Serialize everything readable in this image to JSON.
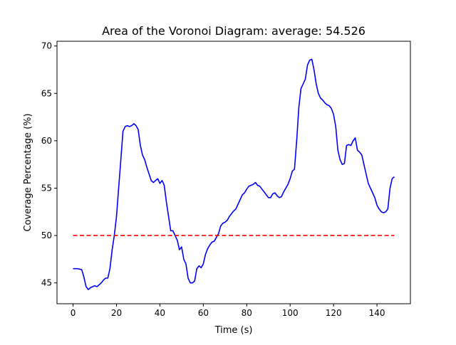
{
  "chart_data": {
    "type": "line",
    "title": "Area of the Voronoi Diagram: average: 54.526",
    "xlabel": "Time (s)",
    "ylabel": "Coverage Percentage (%)",
    "xlim": [
      -7.4,
      155.4
    ],
    "ylim": [
      42.8,
      70.5
    ],
    "xticks": [
      0,
      20,
      40,
      60,
      80,
      100,
      120,
      140
    ],
    "yticks": [
      45,
      50,
      55,
      60,
      65,
      70
    ],
    "grid": false,
    "series": [
      {
        "color": "#0000ff",
        "style": "solid",
        "x": [
          0,
          2,
          4,
          5,
          6,
          7,
          8,
          9,
          10,
          11,
          12,
          13,
          14,
          15,
          16,
          17,
          18,
          19,
          20,
          21,
          22,
          23,
          24,
          25,
          26,
          27,
          28,
          29,
          30,
          31,
          32,
          33,
          34,
          35,
          36,
          37,
          38,
          39,
          40,
          41,
          42,
          43,
          44,
          45,
          46,
          47,
          48,
          49,
          50,
          51,
          52,
          53,
          54,
          55,
          56,
          57,
          58,
          59,
          60,
          61,
          62,
          63,
          64,
          65,
          66,
          67,
          68,
          69,
          70,
          71,
          72,
          73,
          74,
          75,
          76,
          77,
          78,
          79,
          80,
          81,
          82,
          83,
          84,
          85,
          86,
          87,
          88,
          89,
          90,
          91,
          92,
          93,
          94,
          95,
          96,
          97,
          98,
          99,
          100,
          101,
          102,
          103,
          104,
          105,
          106,
          107,
          108,
          109,
          110,
          111,
          112,
          113,
          114,
          115,
          116,
          117,
          118,
          119,
          120,
          121,
          122,
          123,
          124,
          125,
          126,
          127,
          128,
          129,
          130,
          131,
          132,
          133,
          134,
          135,
          136,
          137,
          138,
          139,
          140,
          141,
          142,
          143,
          144,
          145,
          146,
          147,
          148
        ],
        "y": [
          46.5,
          46.5,
          46.4,
          45.6,
          44.6,
          44.3,
          44.5,
          44.6,
          44.7,
          44.6,
          44.8,
          45.0,
          45.3,
          45.5,
          45.5,
          46.5,
          48.5,
          50.0,
          52.0,
          55.0,
          58.0,
          61.0,
          61.5,
          61.6,
          61.5,
          61.6,
          61.8,
          61.6,
          61.2,
          59.5,
          58.5,
          58.0,
          57.2,
          56.5,
          55.8,
          55.6,
          55.8,
          56.0,
          55.5,
          55.8,
          55.3,
          53.5,
          52.0,
          50.5,
          50.5,
          50.0,
          49.5,
          48.5,
          48.8,
          47.5,
          47.0,
          45.5,
          45.0,
          45.0,
          45.2,
          46.5,
          46.8,
          46.6,
          47.0,
          48.0,
          48.6,
          49.0,
          49.3,
          49.4,
          49.8,
          50.2,
          51.0,
          51.3,
          51.4,
          51.6,
          52.0,
          52.3,
          52.6,
          52.8,
          53.3,
          53.8,
          54.3,
          54.5,
          54.9,
          55.2,
          55.3,
          55.4,
          55.6,
          55.3,
          55.2,
          54.9,
          54.6,
          54.3,
          54.0,
          54.0,
          54.4,
          54.5,
          54.2,
          54.0,
          54.1,
          54.6,
          55.0,
          55.4,
          56.0,
          56.8,
          57.0,
          60.0,
          63.5,
          65.5,
          66.0,
          66.5,
          68.0,
          68.5,
          68.6,
          67.5,
          66.0,
          65.0,
          64.5,
          64.3,
          64.0,
          63.8,
          63.7,
          63.4,
          62.8,
          61.5,
          59.0,
          58.0,
          57.5,
          57.6,
          59.5,
          59.6,
          59.5,
          60.0,
          60.3,
          59.0,
          58.8,
          58.5,
          57.5,
          56.5,
          55.5,
          55.0,
          54.5,
          54.0,
          53.2,
          52.8,
          52.5,
          52.4,
          52.5,
          52.8,
          55.0,
          56.0,
          56.2
        ]
      },
      {
        "color": "#ff0000",
        "style": "dashed",
        "x": [
          0,
          148
        ],
        "y": [
          50,
          50
        ]
      }
    ]
  }
}
